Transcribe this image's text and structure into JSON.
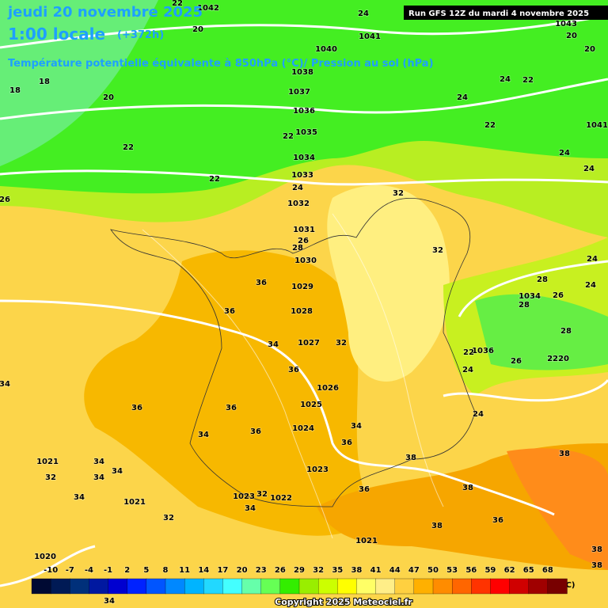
{
  "header": {
    "title": "jeudi 20 novembre 2025",
    "time": "1:00 locale",
    "offset": "(+372h)",
    "run": "Run GFS 12Z du mardi 4 novembre 2025",
    "subtitle": "Température potentielle équivalente à 850hPa (°C)/ Pression au sol (hPa)"
  },
  "legend": {
    "unit": "(°C)",
    "ticks": [
      -10,
      -7,
      -4,
      -1,
      2,
      5,
      8,
      11,
      14,
      17,
      20,
      23,
      26,
      29,
      32,
      35,
      38,
      41,
      44,
      47,
      50,
      53,
      56,
      59,
      62,
      65,
      68
    ],
    "colors": [
      "#000a33",
      "#001a55",
      "#00307a",
      "#0018a0",
      "#0000d0",
      "#0022ff",
      "#0055ff",
      "#0088ff",
      "#00b4ff",
      "#22d8ff",
      "#44ffff",
      "#66ffaa",
      "#66ff55",
      "#33ee00",
      "#99ee00",
      "#ccff00",
      "#ffff00",
      "#ffff66",
      "#ffee88",
      "#ffd040",
      "#ffb000",
      "#ff8c00",
      "#ff6600",
      "#ff3300",
      "#ff0000",
      "#d00000",
      "#a00000",
      "#780000"
    ]
  },
  "map": {
    "labels": [
      1042,
      22,
      20,
      24,
      1041,
      1040,
      1038,
      1037,
      1036,
      1035,
      1034,
      1033,
      1032,
      1031,
      1030,
      1029,
      1028,
      1027,
      1026,
      1025,
      1024,
      1023,
      1022,
      1021,
      1020,
      1021,
      1021,
      1023,
      1043,
      1041,
      1034,
      1036,
      2220,
      18,
      18,
      20,
      22,
      22,
      22,
      24,
      26,
      26,
      28,
      36,
      36,
      34,
      32,
      36,
      36,
      36,
      36,
      34,
      34,
      36,
      34,
      34,
      32,
      34,
      34,
      32,
      34,
      32,
      38,
      38,
      36,
      36,
      38,
      38,
      38,
      38,
      32,
      32,
      28,
      28,
      24,
      24,
      26,
      28,
      26,
      24,
      24,
      22,
      24,
      22,
      24,
      22,
      24,
      24,
      20,
      20,
      34,
      34
    ]
  },
  "footer": {
    "copyright": "Copyright 2025 Meteociel.fr"
  }
}
